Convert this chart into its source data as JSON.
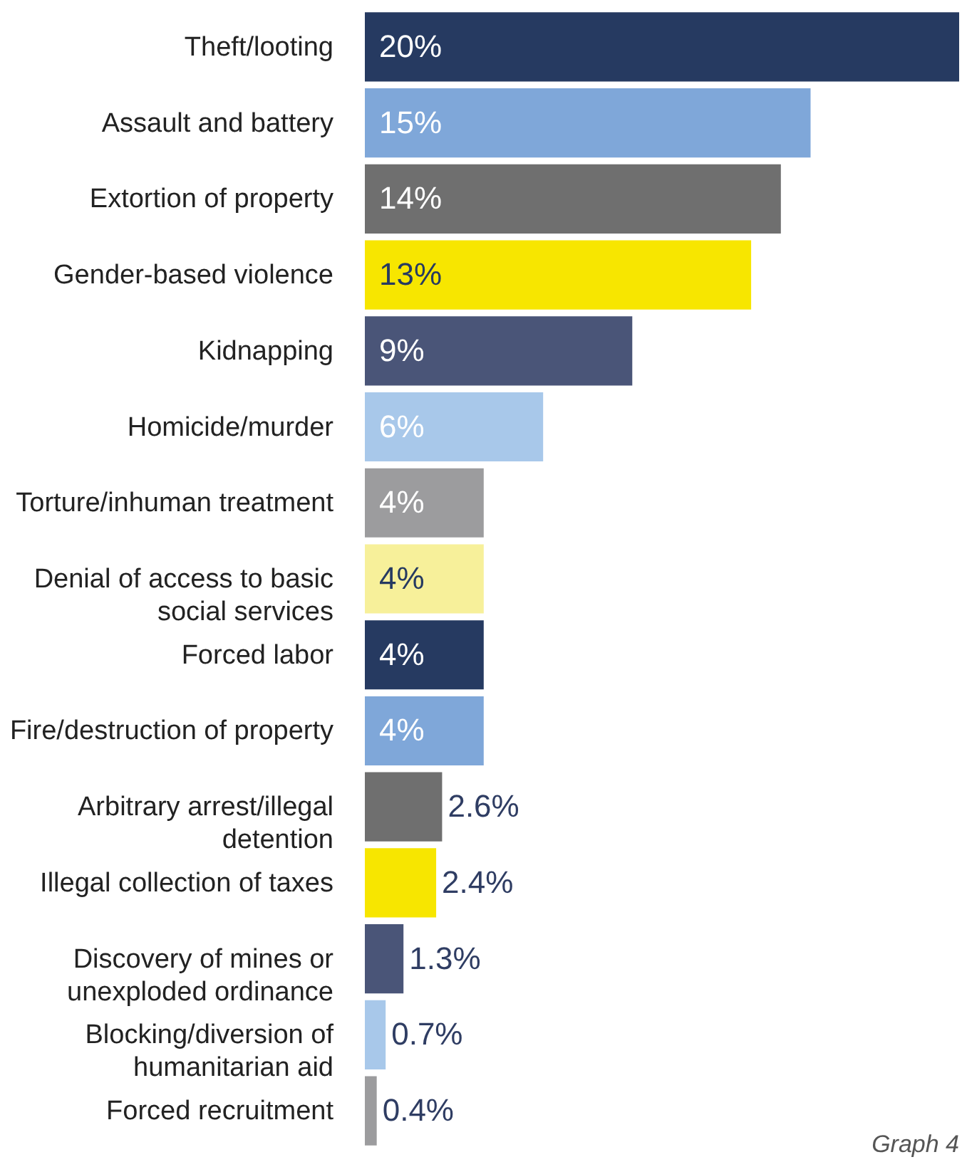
{
  "chart_data": {
    "type": "bar",
    "orientation": "horizontal",
    "data_labels": true,
    "categories": [
      "Theft/looting",
      "Assault and battery",
      "Extortion of property",
      "Gender-based violence",
      "Kidnapping",
      "Homicide/murder",
      "Torture/inhuman treatment",
      "Denial of access to basic social services",
      "Forced labor",
      "Fire/destruction of property",
      "Arbitrary arrest/illegal detention",
      "Illegal collection of taxes",
      "Discovery of mines or unexploded ordinance",
      "Blocking/diversion of humanitarian aid",
      "Forced recruitment"
    ],
    "values": [
      20,
      15,
      14,
      13,
      9,
      6,
      4,
      4,
      4,
      4,
      2.6,
      2.4,
      1.3,
      0.7,
      0.4
    ],
    "value_labels": [
      "20%",
      "15%",
      "14%",
      "13%",
      "9%",
      "6%",
      "4%",
      "4%",
      "4%",
      "4%",
      "2.6%",
      "2.4%",
      "1.3%",
      "0.7%",
      "0.4%"
    ],
    "colors": [
      "#263a61",
      "#7fa7d9",
      "#6f6f6f",
      "#f7e600",
      "#4a5578",
      "#a8c8ea",
      "#9c9c9e",
      "#f7f09a",
      "#263a61",
      "#7fa7d9",
      "#6f6f6f",
      "#f7e600",
      "#4a5578",
      "#a8c8ea",
      "#9c9c9e"
    ],
    "annotations": [
      "Graph 4"
    ]
  }
}
